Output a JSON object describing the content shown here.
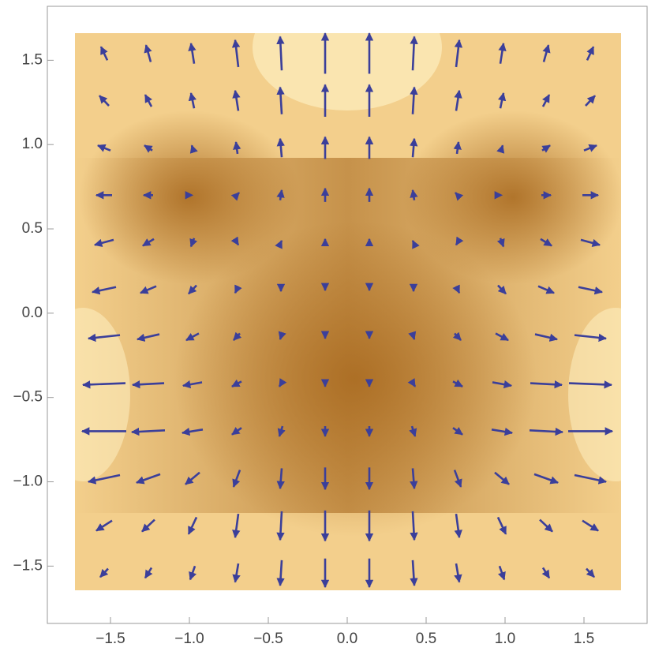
{
  "chart_data": {
    "type": "vector",
    "color": "#3b3f9a",
    "x": [
      -1.54,
      -1.26,
      -0.98,
      -0.7,
      -0.42,
      -0.14,
      0.14,
      0.42,
      0.7,
      0.98,
      1.26,
      1.54
    ],
    "y": [
      1.54,
      1.26,
      0.98,
      0.7,
      0.42,
      0.14,
      -0.14,
      -0.42,
      -0.7,
      -0.98,
      -1.26,
      -1.54
    ],
    "u": [
      [
        -0.04,
        -0.03,
        -0.02,
        -0.02,
        -0.01,
        0,
        0,
        0.01,
        0.02,
        0.02,
        0.03,
        0.04
      ],
      [
        -0.06,
        -0.04,
        -0.02,
        -0.02,
        -0.01,
        0,
        0,
        0.01,
        0.02,
        0.02,
        0.04,
        0.06
      ],
      [
        -0.08,
        -0.05,
        -0.01,
        -0.01,
        -0.01,
        0,
        0,
        0.01,
        0.01,
        0.01,
        0.05,
        0.08
      ],
      [
        -0.1,
        -0.06,
        0,
        0.03,
        0.01,
        0,
        0,
        -0.01,
        -0.03,
        0,
        0.06,
        0.1
      ],
      [
        -0.12,
        -0.07,
        -0.02,
        0.02,
        0.01,
        0,
        0,
        -0.01,
        -0.02,
        0.02,
        0.07,
        0.12
      ],
      [
        -0.15,
        -0.1,
        -0.05,
        -0.02,
        0,
        0,
        0,
        0,
        0.02,
        0.05,
        0.1,
        0.15
      ],
      [
        -0.2,
        -0.14,
        -0.08,
        -0.04,
        -0.01,
        0,
        0,
        0.01,
        0.04,
        0.08,
        0.14,
        0.2
      ],
      [
        -0.27,
        -0.2,
        -0.12,
        -0.06,
        -0.02,
        0,
        0,
        0.02,
        0.06,
        0.12,
        0.2,
        0.27
      ],
      [
        -0.28,
        -0.21,
        -0.13,
        -0.06,
        -0.02,
        0,
        0,
        0.02,
        0.06,
        0.13,
        0.21,
        0.28
      ],
      [
        -0.2,
        -0.15,
        -0.09,
        -0.04,
        -0.01,
        0,
        0,
        0.01,
        0.04,
        0.09,
        0.15,
        0.2
      ],
      [
        -0.1,
        -0.08,
        -0.05,
        -0.02,
        -0.01,
        0,
        0,
        0.01,
        0.02,
        0.05,
        0.08,
        0.1
      ],
      [
        -0.05,
        -0.04,
        -0.03,
        -0.02,
        -0.01,
        0,
        0,
        0.01,
        0.02,
        0.03,
        0.04,
        0.05
      ]
    ],
    "v": [
      [
        0.08,
        0.1,
        0.12,
        0.16,
        0.2,
        0.24,
        0.24,
        0.2,
        0.16,
        0.12,
        0.1,
        0.08
      ],
      [
        0.06,
        0.07,
        0.09,
        0.12,
        0.16,
        0.19,
        0.19,
        0.16,
        0.12,
        0.09,
        0.07,
        0.06
      ],
      [
        0.03,
        0.03,
        0.03,
        0.07,
        0.11,
        0.13,
        0.13,
        0.11,
        0.07,
        0.03,
        0.03,
        0.03
      ],
      [
        0,
        0,
        0,
        0.03,
        0.06,
        0.08,
        0.08,
        0.06,
        0.03,
        0,
        0,
        0
      ],
      [
        -0.03,
        -0.04,
        -0.05,
        -0.03,
        0.02,
        0.04,
        0.04,
        0.02,
        -0.03,
        -0.05,
        -0.04,
        -0.03
      ],
      [
        -0.03,
        -0.04,
        -0.05,
        -0.04,
        -0.02,
        -0.01,
        -0.01,
        -0.02,
        -0.04,
        -0.05,
        -0.04,
        -0.03
      ],
      [
        -0.02,
        -0.03,
        -0.04,
        -0.04,
        -0.03,
        -0.02,
        -0.02,
        -0.03,
        -0.04,
        -0.04,
        -0.03,
        -0.02
      ],
      [
        -0.01,
        -0.01,
        -0.02,
        -0.03,
        -0.03,
        -0.03,
        -0.03,
        -0.03,
        -0.03,
        -0.02,
        -0.01,
        -0.01
      ],
      [
        0,
        -0.01,
        -0.02,
        -0.04,
        -0.06,
        -0.06,
        -0.06,
        -0.06,
        -0.04,
        -0.02,
        -0.01,
        0
      ],
      [
        -0.04,
        -0.05,
        -0.07,
        -0.1,
        -0.12,
        -0.13,
        -0.13,
        -0.12,
        -0.1,
        -0.07,
        -0.05,
        -0.04
      ],
      [
        -0.06,
        -0.07,
        -0.1,
        -0.14,
        -0.17,
        -0.18,
        -0.18,
        -0.17,
        -0.14,
        -0.1,
        -0.07,
        -0.06
      ],
      [
        -0.05,
        -0.06,
        -0.08,
        -0.11,
        -0.15,
        -0.17,
        -0.17,
        -0.15,
        -0.11,
        -0.08,
        -0.06,
        -0.05
      ]
    ],
    "xlim": [
      -1.9,
      1.9
    ],
    "ylim": [
      -1.84,
      1.82
    ],
    "xticks": [
      {
        "value": -1.5,
        "label": "−1.5"
      },
      {
        "value": -1,
        "label": "−1.0"
      },
      {
        "value": -0.5,
        "label": "−0.5"
      },
      {
        "value": 0,
        "label": "0.0"
      },
      0.5,
      {
        "value": 1,
        "label": "1.0"
      },
      1.5
    ],
    "yticks": [
      {
        "value": -1.5,
        "label": "−1.5"
      },
      {
        "value": -1,
        "label": "−1.0"
      },
      {
        "value": -0.5,
        "label": "−0.5"
      },
      {
        "value": 0,
        "label": "0.0"
      },
      0.5,
      {
        "value": 1,
        "label": "1.0"
      },
      1.5
    ]
  }
}
